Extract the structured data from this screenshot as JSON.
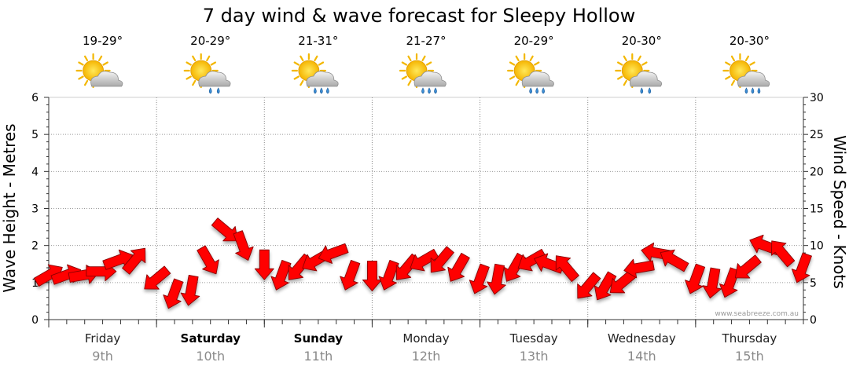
{
  "chart_data": {
    "type": "line",
    "title": "7 day wind & wave forecast for Sleepy Hollow",
    "ylabel_left": "Wave Height - Metres",
    "ylabel_right": "Wind Speed - Knots",
    "ylim_left": [
      0,
      6
    ],
    "ylim_right": [
      0,
      30
    ],
    "yticks_left": [
      "0",
      "1",
      "2",
      "3",
      "4",
      "5",
      "6"
    ],
    "yticks_right": [
      "0",
      "5",
      "10",
      "15",
      "20",
      "25",
      "30"
    ],
    "grid": true,
    "credit": "www.seabreeze.com.au",
    "days": [
      {
        "name": "Friday",
        "date": "9th",
        "bold": false,
        "temp": "19-29°",
        "weather": "partly-cloudy-icon"
      },
      {
        "name": "Saturday",
        "date": "10th",
        "bold": true,
        "temp": "20-29°",
        "weather": "showers-icon"
      },
      {
        "name": "Sunday",
        "date": "11th",
        "bold": true,
        "temp": "21-31°",
        "weather": "rain-icon"
      },
      {
        "name": "Monday",
        "date": "12th",
        "bold": false,
        "temp": "21-27°",
        "weather": "rain-icon"
      },
      {
        "name": "Tuesday",
        "date": "13th",
        "bold": false,
        "temp": "20-29°",
        "weather": "rain-icon"
      },
      {
        "name": "Wednesday",
        "date": "14th",
        "bold": false,
        "temp": "20-30°",
        "weather": "showers-icon"
      },
      {
        "name": "Thursday",
        "date": "15th",
        "bold": false,
        "temp": "20-30°",
        "weather": "rain-icon"
      }
    ],
    "series": [
      {
        "name": "Wind",
        "color": "#ff0000",
        "unit": "knots",
        "day_offset": [
          0,
          0.16,
          0.32,
          0.48,
          0.64,
          0.8,
          1.0,
          1.16,
          1.32,
          1.48,
          1.64,
          1.8,
          2.0,
          2.16,
          2.32,
          2.48,
          2.64,
          2.8,
          3.0,
          3.16,
          3.32,
          3.48,
          3.64,
          3.8,
          4.0,
          4.16,
          4.32,
          4.48,
          4.64,
          4.8,
          5.0,
          5.16,
          5.32,
          5.48,
          5.64,
          5.8,
          6.0,
          6.16,
          6.32,
          6.48,
          6.64,
          6.8,
          6.99
        ],
        "values": [
          6,
          6,
          6,
          6.5,
          8,
          8,
          5.5,
          3.5,
          4,
          8,
          12,
          10,
          7.5,
          6,
          7,
          8,
          9,
          6,
          6,
          6,
          7,
          8,
          8,
          7,
          5.5,
          5.5,
          7,
          8,
          7.5,
          7,
          4.5,
          4.5,
          5,
          7,
          9,
          8,
          5.5,
          5,
          5,
          7,
          10,
          9,
          7
        ],
        "direction_deg": [
          60,
          70,
          80,
          90,
          70,
          40,
          230,
          200,
          190,
          150,
          130,
          160,
          180,
          200,
          220,
          240,
          250,
          200,
          180,
          200,
          220,
          240,
          220,
          210,
          200,
          190,
          210,
          240,
          290,
          320,
          220,
          210,
          230,
          260,
          280,
          300,
          200,
          190,
          200,
          230,
          290,
          320,
          200
        ]
      }
    ]
  }
}
